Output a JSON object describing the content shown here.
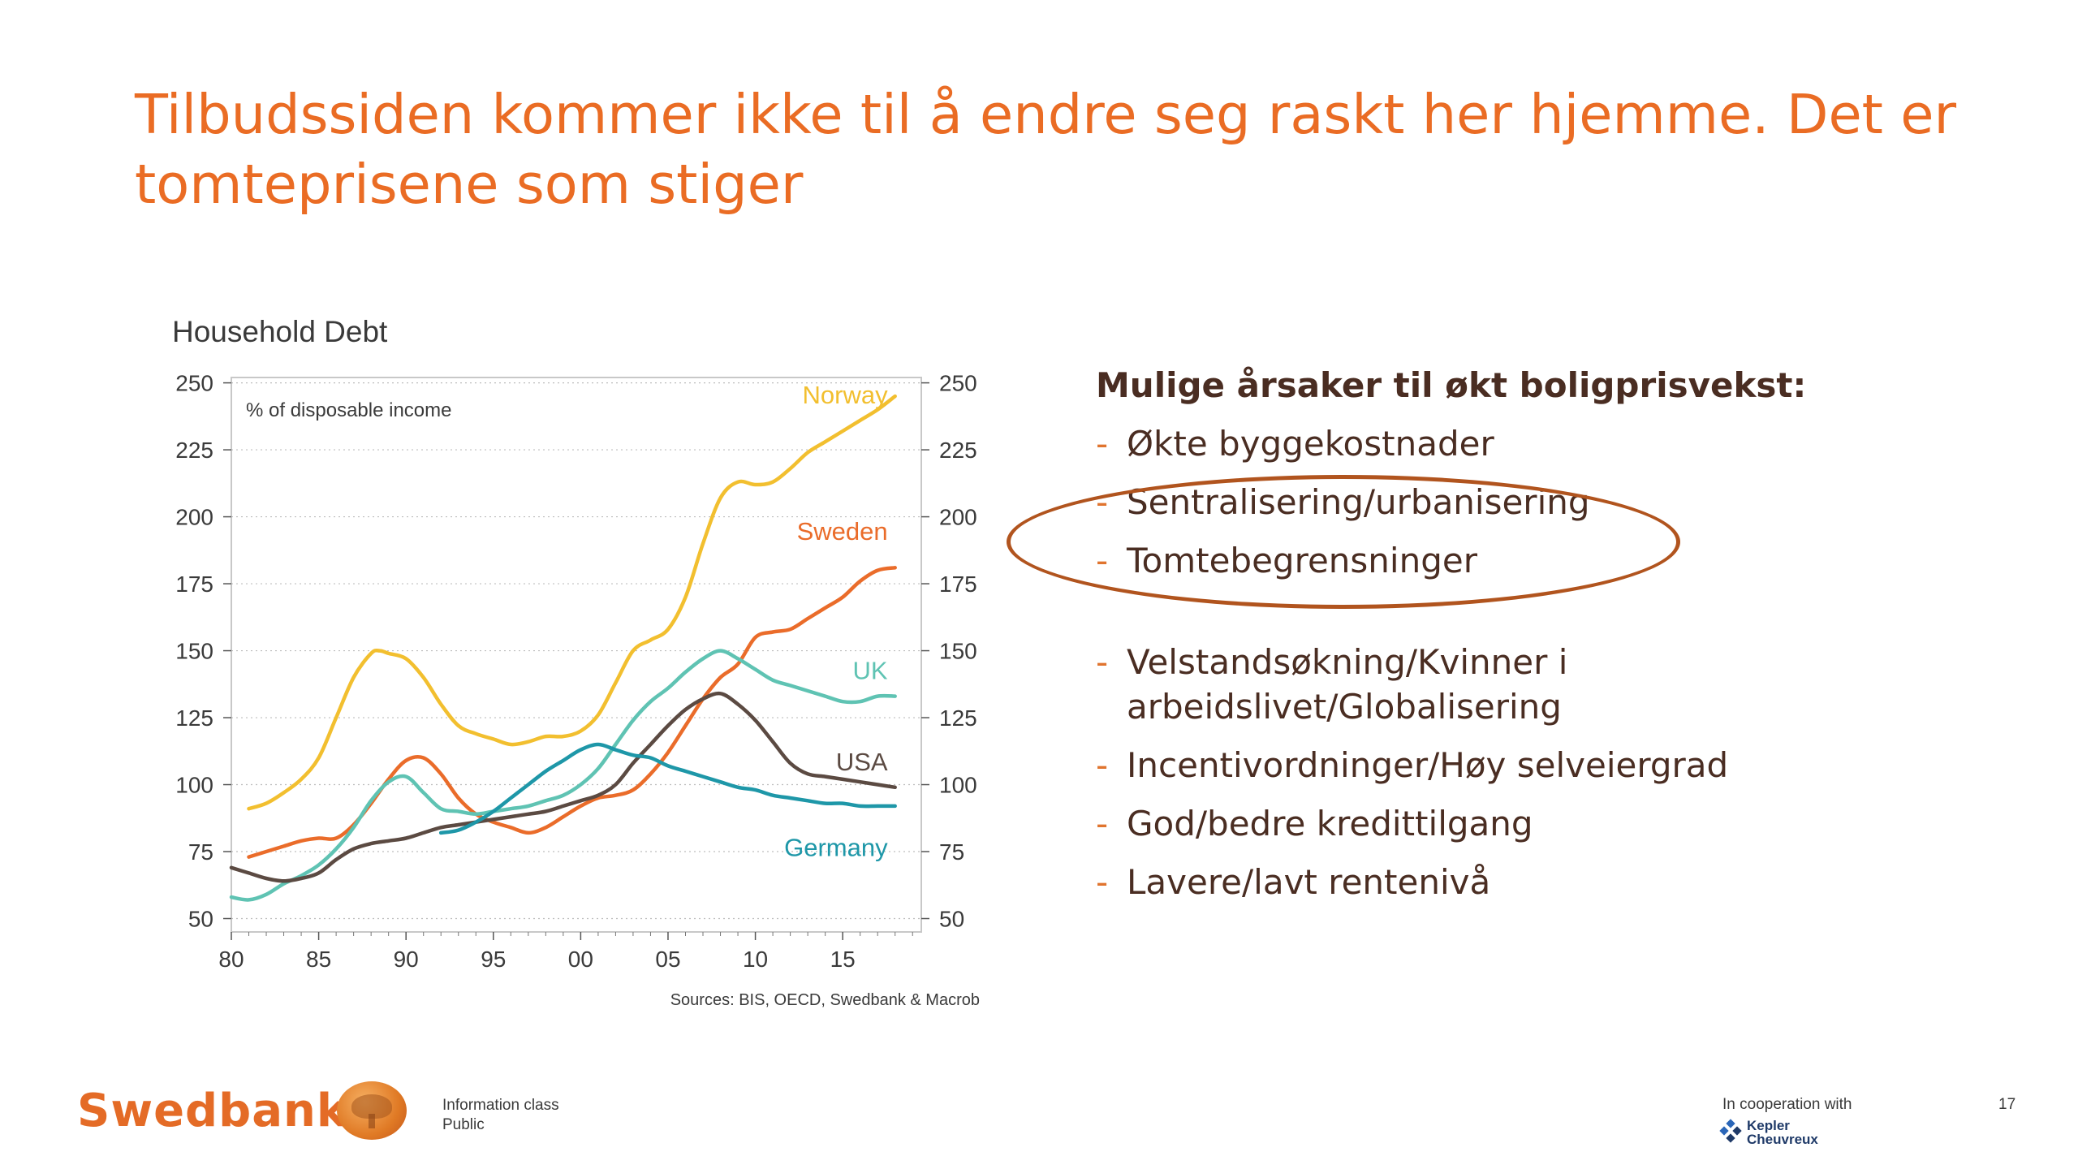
{
  "slide": {
    "title_line1": "Tilbudssiden kommer ikke til å endre seg raskt her hjemme. Det er",
    "title_line2": "tomteprisene som stiger",
    "page_number": "17"
  },
  "causes": {
    "heading": "Mulige årsaker til økt boligprisvekst:",
    "dash": "-",
    "items": [
      "Økte byggekostnader",
      "Sentralisering/urbanisering",
      "Tomtebegrensninger",
      "Velstandsøkning/Kvinner i arbeidslivet/Globalisering",
      "Incentivordninger/Høy selveiergrad",
      "God/bedre kredittilgang",
      "Lavere/lavt rentenivå"
    ]
  },
  "footer": {
    "brand": "Swedbank",
    "info_class_label": "Information class",
    "info_class_value": "Public",
    "cooperation": "In cooperation with",
    "partner_line1": "Kepler",
    "partner_line2": "Cheuvreux"
  },
  "colors": {
    "title": "#ea6c24",
    "norway": "#f2bf2f",
    "sweden": "#ea6c2a",
    "uk": "#5fc3b3",
    "usa": "#5b4a42",
    "germany": "#1e97a8",
    "oval": "#b1541e"
  },
  "chart_data": {
    "type": "line",
    "title": "Household Debt",
    "subtitle": "% of disposable income",
    "source": "Sources: BIS, OECD, Swedbank & Macrob",
    "xlim": [
      1980,
      2019.5
    ],
    "ylim": [
      45,
      252
    ],
    "x_ticks": [
      1980,
      1985,
      1990,
      1995,
      2000,
      2005,
      2010,
      2015
    ],
    "x_tick_labels": [
      "80",
      "85",
      "90",
      "95",
      "00",
      "05",
      "10",
      "15"
    ],
    "y_ticks": [
      50,
      75,
      100,
      125,
      150,
      175,
      200,
      225,
      250
    ],
    "y_tick_labels": [
      "50",
      "75",
      "100",
      "125",
      "150",
      "175",
      "200",
      "225",
      "250"
    ],
    "grid": true,
    "series": [
      {
        "name": "Norway",
        "color": "#f2bf2f",
        "label_x": 2012,
        "label_y": 246,
        "x": [
          1981,
          1982,
          1983,
          1984,
          1985,
          1986,
          1987,
          1988,
          1988.5,
          1989,
          1990,
          1991,
          1992,
          1993,
          1994,
          1995,
          1996,
          1997,
          1998,
          1999,
          2000,
          2001,
          2002,
          2003,
          2004,
          2005,
          2006,
          2007,
          2008,
          2009,
          2010,
          2011,
          2012,
          2013,
          2014,
          2015,
          2016,
          2017,
          2018
        ],
        "y": [
          91,
          93,
          97,
          102,
          110,
          125,
          140,
          149,
          150,
          149,
          147,
          140,
          130,
          122,
          119,
          117,
          115,
          116,
          118,
          118,
          120,
          126,
          138,
          150,
          154,
          158,
          170,
          190,
          207,
          213,
          212,
          213,
          218,
          224,
          228,
          232,
          236,
          240,
          245
        ]
      },
      {
        "name": "Sweden",
        "color": "#ea6c2a",
        "label_x": 2012,
        "label_y": 195,
        "x": [
          1981,
          1982,
          1983,
          1984,
          1985,
          1986,
          1987,
          1988,
          1989,
          1990,
          1991,
          1992,
          1993,
          1994,
          1995,
          1996,
          1997,
          1998,
          1999,
          2000,
          2001,
          2002,
          2003,
          2004,
          2005,
          2006,
          2007,
          2008,
          2009,
          2010,
          2011,
          2012,
          2013,
          2014,
          2015,
          2016,
          2017,
          2018
        ],
        "y": [
          73,
          75,
          77,
          79,
          80,
          80,
          85,
          93,
          102,
          109,
          110,
          104,
          95,
          89,
          86,
          84,
          82,
          84,
          88,
          92,
          95,
          96,
          98,
          104,
          112,
          122,
          132,
          140,
          145,
          155,
          157,
          158,
          162,
          166,
          170,
          176,
          180,
          181
        ]
      },
      {
        "name": "UK",
        "color": "#5fc3b3",
        "label_x": 2012,
        "label_y": 143,
        "x": [
          1980,
          1981,
          1982,
          1983,
          1984,
          1985,
          1986,
          1987,
          1988,
          1989,
          1990,
          1991,
          1992,
          1993,
          1994,
          1995,
          1996,
          1997,
          1998,
          1999,
          2000,
          2001,
          2002,
          2003,
          2004,
          2005,
          2006,
          2007,
          2008,
          2009,
          2010,
          2011,
          2012,
          2013,
          2014,
          2015,
          2016,
          2017,
          2018
        ],
        "y": [
          58,
          57,
          59,
          63,
          66,
          70,
          76,
          84,
          94,
          101,
          103,
          97,
          91,
          90,
          89,
          90,
          91,
          92,
          94,
          96,
          100,
          106,
          115,
          124,
          131,
          136,
          142,
          147,
          150,
          147,
          143,
          139,
          137,
          135,
          133,
          131,
          131,
          133,
          133
        ]
      },
      {
        "name": "USA",
        "color": "#5b4a42",
        "label_x": 2012,
        "label_y": 109,
        "x": [
          1980,
          1981,
          1982,
          1983,
          1984,
          1985,
          1986,
          1987,
          1988,
          1989,
          1990,
          1991,
          1992,
          1993,
          1994,
          1995,
          1996,
          1997,
          1998,
          1999,
          2000,
          2001,
          2002,
          2003,
          2004,
          2005,
          2006,
          2007,
          2008,
          2009,
          2010,
          2011,
          2012,
          2013,
          2014,
          2015,
          2016,
          2017,
          2018
        ],
        "y": [
          69,
          67,
          65,
          64,
          65,
          67,
          72,
          76,
          78,
          79,
          80,
          82,
          84,
          85,
          86,
          87,
          88,
          89,
          90,
          92,
          94,
          96,
          100,
          108,
          115,
          122,
          128,
          132,
          134,
          130,
          124,
          116,
          108,
          104,
          103,
          102,
          101,
          100,
          99
        ]
      },
      {
        "name": "Germany",
        "color": "#1e97a8",
        "label_x": 2012,
        "label_y": 77,
        "x": [
          1992,
          1993,
          1994,
          1995,
          1996,
          1997,
          1998,
          1999,
          2000,
          2001,
          2002,
          2003,
          2004,
          2005,
          2006,
          2007,
          2008,
          2009,
          2010,
          2011,
          2012,
          2013,
          2014,
          2015,
          2016,
          2017,
          2018
        ],
        "y": [
          82,
          83,
          86,
          90,
          95,
          100,
          105,
          109,
          113,
          115,
          113,
          111,
          110,
          107,
          105,
          103,
          101,
          99,
          98,
          96,
          95,
          94,
          93,
          93,
          92,
          92,
          92
        ]
      }
    ]
  }
}
